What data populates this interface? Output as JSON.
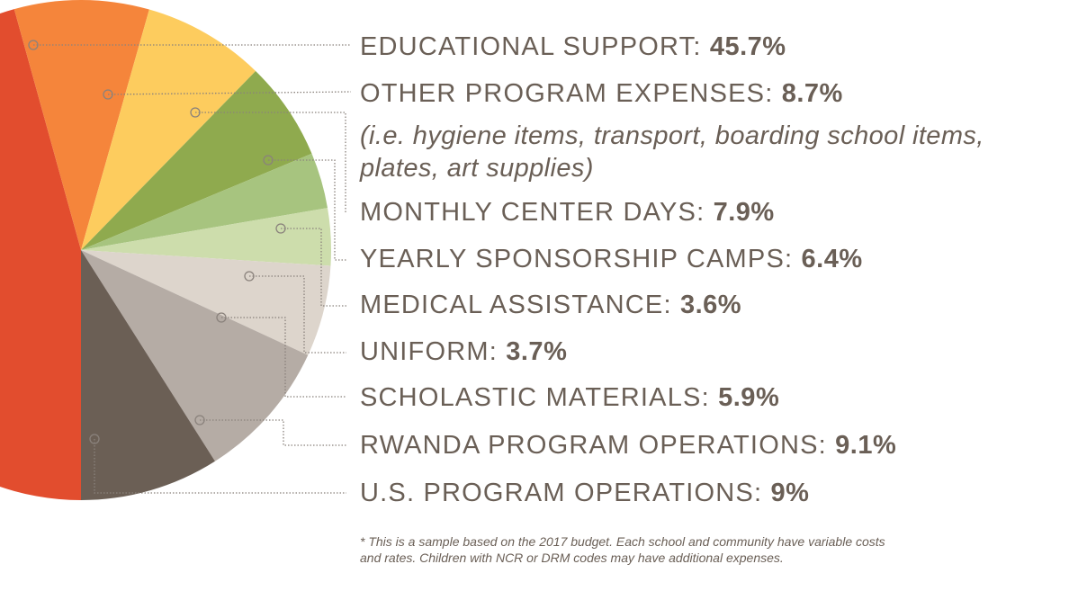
{
  "chart_data": {
    "type": "pie",
    "slices": [
      {
        "label": "EDUCATIONAL SUPPORT:",
        "value": 45.7,
        "value_label": "45.7%",
        "color": "#e24d2e"
      },
      {
        "label": "OTHER PROGRAM EXPENSES:",
        "value": 8.7,
        "value_label": "8.7%",
        "color": "#f5853b",
        "note": "(i.e. hygiene items, transport, boarding school items, plates, art supplies)"
      },
      {
        "label": "MONTHLY CENTER DAYS:",
        "value": 7.9,
        "value_label": "7.9%",
        "color": "#fdcc5e"
      },
      {
        "label": "YEARLY SPONSORSHIP CAMPS:",
        "value": 6.4,
        "value_label": "6.4%",
        "color": "#8faa4e"
      },
      {
        "label": "MEDICAL ASSISTANCE:",
        "value": 3.6,
        "value_label": "3.6%",
        "color": "#a7c47f"
      },
      {
        "label": "UNIFORM:",
        "value": 3.7,
        "value_label": "3.7%",
        "color": "#cdddac"
      },
      {
        "label": "SCHOLASTIC MATERIALS:",
        "value": 5.9,
        "value_label": "5.9%",
        "color": "#ddd5cc"
      },
      {
        "label": "RWANDA PROGRAM OPERATIONS:",
        "value": 9.1,
        "value_label": "9.1%",
        "color": "#b5aca5"
      },
      {
        "label": "U.S. PROGRAM OPERATIONS:",
        "value": 9,
        "value_label": "9%",
        "color": "#6b5f55"
      }
    ],
    "footnote": "* This is a sample based on the 2017 budget. Each school and community have variable costs and rates. Children with NCR or DRM codes may have additional expenses."
  },
  "colors": {
    "text": "#6a5f56",
    "leader": "#8a827c"
  }
}
